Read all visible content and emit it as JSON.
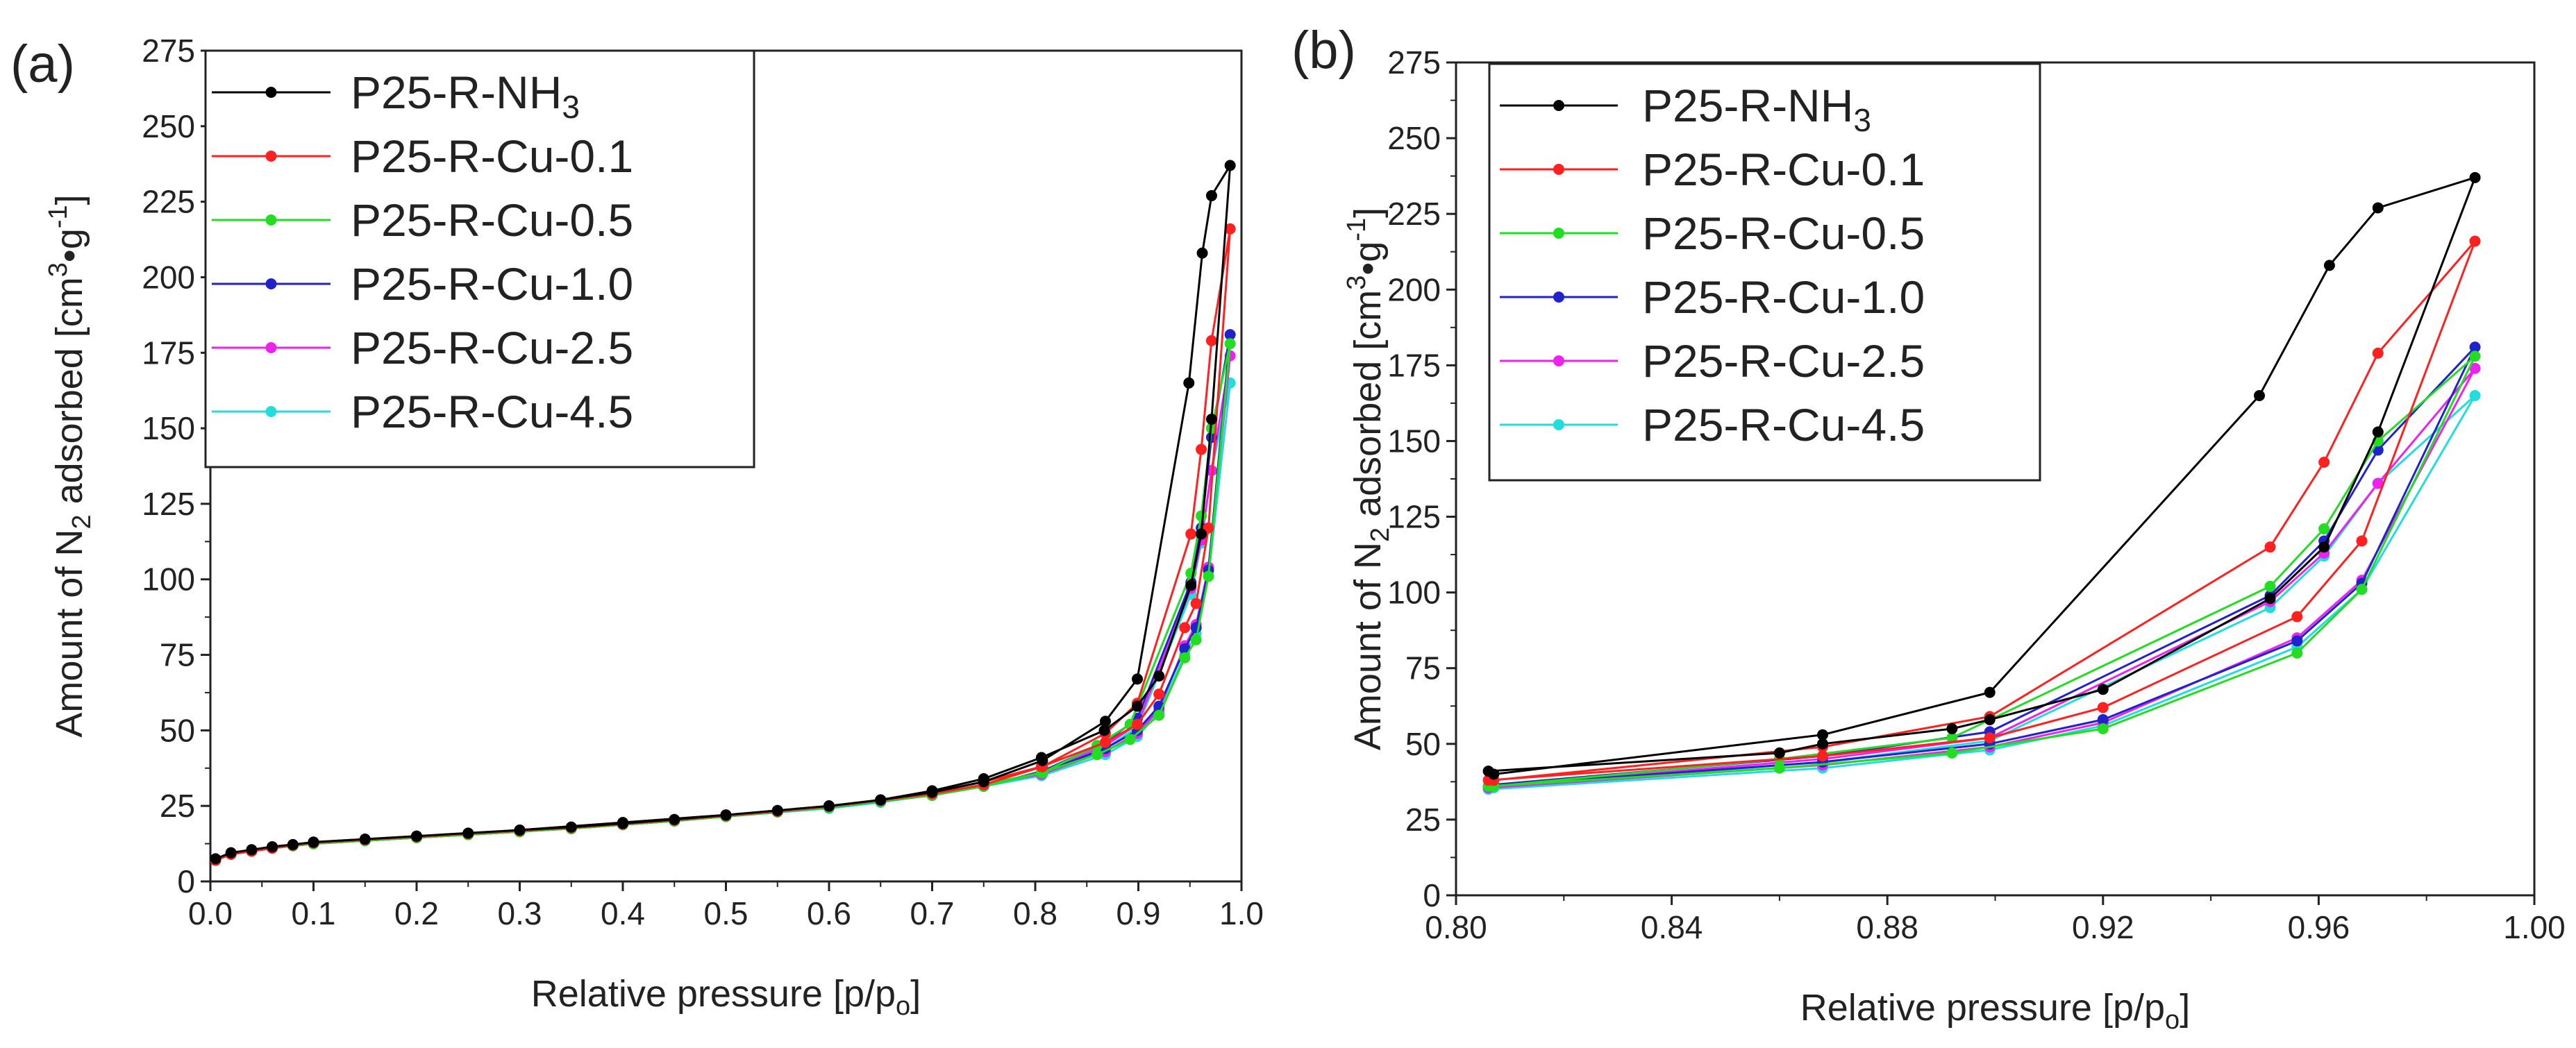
{
  "chart_data": [
    {
      "type": "line",
      "panel_label": "(a)",
      "xlabel": "Relative pressure [p/p",
      "xlabel_sub": "o",
      "xlabel_end": "]",
      "ylabel": "Amount of N",
      "ylabel_sub": "2",
      "ylabel_mid": " adsorbed  [cm",
      "ylabel_sup1": "3",
      "ylabel_mid2": "•g",
      "ylabel_sup2": "-1",
      "ylabel_end": "]",
      "xlim": [
        0.0,
        1.0
      ],
      "ylim": [
        0,
        275
      ],
      "xticks": [
        "0.0",
        "0.1",
        "0.2",
        "0.3",
        "0.4",
        "0.5",
        "0.6",
        "0.7",
        "0.8",
        "0.9",
        "1.0"
      ],
      "yticks": [
        "0",
        "25",
        "50",
        "75",
        "100",
        "125",
        "150",
        "175",
        "200",
        "225",
        "250",
        "275"
      ],
      "legend_position": "top-left",
      "series": [
        {
          "name": "P25-R-NH",
          "name_sub": "3",
          "color": "#000000",
          "x": [
            0.005,
            0.02,
            0.04,
            0.06,
            0.08,
            0.1,
            0.15,
            0.2,
            0.25,
            0.3,
            0.35,
            0.4,
            0.45,
            0.5,
            0.55,
            0.6,
            0.65,
            0.7,
            0.75,
            0.807,
            0.868,
            0.899,
            0.949,
            0.962,
            0.971,
            0.989,
            0.971,
            0.961,
            0.951,
            0.92,
            0.899,
            0.867,
            0.806,
            0.75,
            0.7,
            0.65,
            0.6,
            0.5,
            0.4,
            0.3,
            0.2,
            0.1
          ],
          "y": [
            7.5,
            9.5,
            10.5,
            11.5,
            12.2,
            13,
            14,
            15,
            16,
            17,
            18,
            19.2,
            20.5,
            22,
            23.5,
            25,
            27,
            29.5,
            33,
            40,
            53,
            67,
            165,
            208,
            227,
            237,
            153,
            115,
            98,
            68,
            58,
            50,
            41,
            34,
            30,
            27,
            25,
            22,
            19.5,
            17,
            15,
            13
          ]
        },
        {
          "name": "P25-R-Cu-0.1",
          "name_sub": "",
          "color": "#ff2020",
          "x": [
            0.005,
            0.02,
            0.04,
            0.06,
            0.08,
            0.1,
            0.15,
            0.2,
            0.25,
            0.3,
            0.35,
            0.4,
            0.45,
            0.5,
            0.55,
            0.6,
            0.65,
            0.7,
            0.75,
            0.807,
            0.868,
            0.899,
            0.951,
            0.961,
            0.971,
            0.989,
            0.968,
            0.956,
            0.945,
            0.92,
            0.899,
            0.868,
            0.806,
            0.75,
            0.7,
            0.65,
            0.6,
            0.5,
            0.4,
            0.3,
            0.2,
            0.1
          ],
          "y": [
            7,
            9,
            10,
            11,
            12,
            12.8,
            13.8,
            14.8,
            15.8,
            16.8,
            17.8,
            19,
            20.3,
            21.8,
            23.2,
            24.8,
            26.8,
            29,
            32,
            38,
            49,
            59,
            115,
            143,
            179,
            216,
            117,
            92,
            84,
            62,
            52,
            46,
            38,
            33,
            29.5,
            27,
            25,
            22,
            19.5,
            17,
            15,
            13
          ]
        },
        {
          "name": "P25-R-Cu-0.5",
          "name_sub": "",
          "color": "#22dd22",
          "x": [
            0.005,
            0.02,
            0.04,
            0.06,
            0.08,
            0.1,
            0.15,
            0.2,
            0.25,
            0.3,
            0.35,
            0.4,
            0.45,
            0.5,
            0.55,
            0.6,
            0.65,
            0.7,
            0.75,
            0.807,
            0.86,
            0.892,
            0.951,
            0.961,
            0.971,
            0.989,
            0.968,
            0.956,
            0.945,
            0.92,
            0.892,
            0.86,
            0.806,
            0.75,
            0.7,
            0.65,
            0.6,
            0.5,
            0.4,
            0.3,
            0.2,
            0.1
          ],
          "y": [
            7,
            9,
            10,
            11,
            11.8,
            12.5,
            13.5,
            14.5,
            15.5,
            16.5,
            17.5,
            18.8,
            20,
            21.5,
            23,
            24.5,
            26.5,
            28.5,
            31.5,
            36,
            45,
            52,
            102,
            121,
            150,
            178,
            101,
            80,
            74,
            55,
            47,
            42,
            36,
            32,
            29,
            26.5,
            24.5,
            21.5,
            19,
            16.5,
            14.5,
            12.5
          ]
        },
        {
          "name": "P25-R-Cu-1.0",
          "name_sub": "",
          "color": "#2222cc",
          "x": [
            0.005,
            0.02,
            0.04,
            0.06,
            0.08,
            0.1,
            0.15,
            0.2,
            0.25,
            0.3,
            0.35,
            0.4,
            0.45,
            0.5,
            0.55,
            0.6,
            0.65,
            0.7,
            0.75,
            0.807,
            0.868,
            0.899,
            0.951,
            0.961,
            0.971,
            0.989,
            0.968,
            0.956,
            0.945,
            0.92,
            0.899,
            0.868,
            0.806,
            0.75,
            0.7,
            0.65,
            0.6,
            0.5,
            0.4,
            0.3,
            0.2,
            0.1
          ],
          "y": [
            7,
            9,
            10,
            11,
            11.8,
            12.5,
            13.5,
            14.5,
            15.5,
            16.5,
            17.5,
            18.8,
            20,
            21.5,
            23,
            24.5,
            26.5,
            28.5,
            31.5,
            36.5,
            46,
            54,
            99,
            117,
            147,
            181,
            103,
            84,
            77,
            58,
            50,
            44,
            36,
            32,
            29,
            26.5,
            24.5,
            21.5,
            19,
            16.5,
            14.5,
            12.5
          ]
        },
        {
          "name": "P25-R-Cu-2.5",
          "name_sub": "",
          "color": "#ee22ee",
          "x": [
            0.005,
            0.02,
            0.04,
            0.06,
            0.08,
            0.1,
            0.15,
            0.2,
            0.25,
            0.3,
            0.35,
            0.4,
            0.45,
            0.5,
            0.55,
            0.6,
            0.65,
            0.7,
            0.75,
            0.807,
            0.868,
            0.899,
            0.951,
            0.961,
            0.971,
            0.989,
            0.968,
            0.956,
            0.945,
            0.92,
            0.899,
            0.868,
            0.806,
            0.75,
            0.7,
            0.65,
            0.6,
            0.5,
            0.4,
            0.3,
            0.2,
            0.1
          ],
          "y": [
            7,
            9,
            10,
            11,
            11.8,
            12.5,
            13.5,
            14.5,
            15.5,
            16.5,
            17.5,
            18.8,
            20,
            21.5,
            23,
            24.5,
            26.5,
            28.5,
            31.5,
            36,
            45,
            52,
            97,
            113,
            136,
            174,
            104,
            85,
            78,
            57,
            49,
            43,
            35.5,
            32,
            29,
            26.5,
            24.5,
            21.5,
            19,
            16.5,
            14.5,
            12.5
          ]
        },
        {
          "name": "P25-R-Cu-4.5",
          "name_sub": "",
          "color": "#22dddd",
          "x": [
            0.005,
            0.02,
            0.04,
            0.06,
            0.08,
            0.1,
            0.15,
            0.2,
            0.25,
            0.3,
            0.35,
            0.4,
            0.45,
            0.5,
            0.55,
            0.6,
            0.65,
            0.7,
            0.75,
            0.807,
            0.868,
            0.899,
            0.951,
            0.961,
            0.971,
            0.989,
            0.968,
            0.956,
            0.945,
            0.92,
            0.899,
            0.868,
            0.806,
            0.75,
            0.7,
            0.65,
            0.6,
            0.5,
            0.4,
            0.3,
            0.2,
            0.1
          ],
          "y": [
            7.2,
            9.2,
            10.2,
            11.2,
            12,
            12.7,
            13.7,
            14.7,
            15.7,
            16.7,
            17.7,
            19,
            20.2,
            21.7,
            23.2,
            24.7,
            26.7,
            28.7,
            31.7,
            35.5,
            44,
            51,
            95,
            112,
            136,
            165,
            101,
            82,
            75,
            56,
            48,
            42,
            35,
            31.5,
            28.7,
            26.2,
            24.2,
            21.5,
            19,
            16.5,
            14.5,
            12.5
          ]
        }
      ]
    },
    {
      "type": "line",
      "panel_label": "(b)",
      "xlabel": "Relative pressure [p/p",
      "xlabel_sub": "o",
      "xlabel_end": "]",
      "ylabel": "Amount of N",
      "ylabel_sub": "2",
      "ylabel_mid": " adsorbed  [cm",
      "ylabel_sup1": "3",
      "ylabel_mid2": "•g",
      "ylabel_sup2": "-1",
      "ylabel_end": "]",
      "xlim": [
        0.8,
        1.0
      ],
      "ylim": [
        0,
        275
      ],
      "xticks": [
        "0.80",
        "0.84",
        "0.88",
        "0.92",
        "0.96",
        "1.00"
      ],
      "yticks": [
        "0",
        "25",
        "50",
        "75",
        "100",
        "125",
        "150",
        "175",
        "200",
        "225",
        "250",
        "275"
      ],
      "legend_position": "top-left",
      "series": [
        {
          "name": "P25-R-NH",
          "name_sub": "3",
          "color": "#000000",
          "x": [
            0.807,
            0.868,
            0.899,
            0.949,
            0.962,
            0.971,
            0.989,
            0.971,
            0.961,
            0.951,
            0.92,
            0.899,
            0.892,
            0.868,
            0.86,
            0.806
          ],
          "y": [
            40,
            53,
            67,
            165,
            208,
            227,
            237,
            153,
            115,
            98,
            68,
            58,
            55,
            50,
            47,
            41
          ]
        },
        {
          "name": "P25-R-Cu-0.1",
          "name_sub": "",
          "color": "#ff2020",
          "x": [
            0.807,
            0.868,
            0.899,
            0.951,
            0.961,
            0.971,
            0.989,
            0.968,
            0.956,
            0.92,
            0.899,
            0.868,
            0.806
          ],
          "y": [
            38,
            49,
            59,
            115,
            143,
            179,
            216,
            117,
            92,
            62,
            52,
            46,
            38
          ]
        },
        {
          "name": "P25-R-Cu-0.5",
          "name_sub": "",
          "color": "#22dd22",
          "x": [
            0.807,
            0.86,
            0.892,
            0.951,
            0.961,
            0.971,
            0.989,
            0.968,
            0.956,
            0.92,
            0.892,
            0.86,
            0.806
          ],
          "y": [
            36,
            45,
            52,
            102,
            121,
            150,
            178,
            101,
            80,
            55,
            47,
            42,
            36
          ]
        },
        {
          "name": "P25-R-Cu-1.0",
          "name_sub": "",
          "color": "#2222cc",
          "x": [
            0.807,
            0.868,
            0.899,
            0.951,
            0.961,
            0.971,
            0.989,
            0.968,
            0.956,
            0.92,
            0.899,
            0.868,
            0.806
          ],
          "y": [
            36.5,
            46,
            54,
            99,
            117,
            147,
            181,
            103,
            84,
            58,
            50,
            44,
            36
          ]
        },
        {
          "name": "P25-R-Cu-2.5",
          "name_sub": "",
          "color": "#ee22ee",
          "x": [
            0.807,
            0.868,
            0.899,
            0.951,
            0.961,
            0.971,
            0.989,
            0.968,
            0.956,
            0.92,
            0.899,
            0.868,
            0.806
          ],
          "y": [
            36,
            45,
            52,
            97,
            113,
            136,
            174,
            104,
            85,
            57,
            49,
            43,
            35.5
          ]
        },
        {
          "name": "P25-R-Cu-4.5",
          "name_sub": "",
          "color": "#22dddd",
          "x": [
            0.807,
            0.868,
            0.899,
            0.951,
            0.961,
            0.971,
            0.989,
            0.968,
            0.956,
            0.92,
            0.899,
            0.868,
            0.806
          ],
          "y": [
            35.5,
            44,
            51,
            95,
            112,
            136,
            165,
            101,
            82,
            56,
            48,
            42,
            35
          ]
        }
      ]
    }
  ]
}
